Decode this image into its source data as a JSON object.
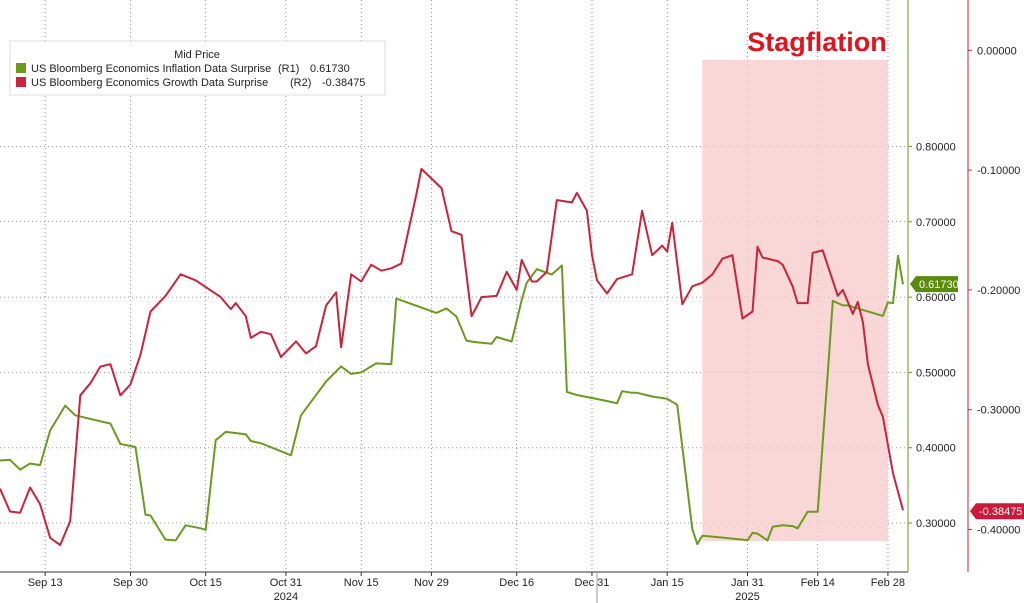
{
  "chart_data": {
    "type": "line",
    "annotation": "Stagflation",
    "shaded_region": {
      "x_start": "2025-01-22",
      "x_end": "2025-02-28"
    },
    "legend": {
      "title": "Mid Price",
      "items": [
        {
          "label": "US Bloomberg Economics Inflation Data Surprise",
          "axis": "(R1)",
          "value": "0.61730"
        },
        {
          "label": "US Bloomberg Economics Growth Data Surprise",
          "axis": "(R2)",
          "value": "-0.38475"
        }
      ]
    },
    "x_ticks": [
      {
        "date": "2024-09-13",
        "label": "Sep 13"
      },
      {
        "date": "2024-09-30",
        "label": "Sep 30"
      },
      {
        "date": "2024-10-15",
        "label": "Oct 15"
      },
      {
        "date": "2024-10-31",
        "label": "Oct 31"
      },
      {
        "date": "2024-11-15",
        "label": "Nov 15"
      },
      {
        "date": "2024-11-29",
        "label": "Nov 29"
      },
      {
        "date": "2024-12-16",
        "label": "Dec 16"
      },
      {
        "date": "2024-12-31",
        "label": "Dec 31"
      },
      {
        "date": "2025-01-15",
        "label": "Jan 15"
      },
      {
        "date": "2025-01-31",
        "label": "Jan 31"
      },
      {
        "date": "2025-02-14",
        "label": "Feb 14"
      },
      {
        "date": "2025-02-28",
        "label": "Feb 28"
      }
    ],
    "year_labels": [
      {
        "date": "2024-10-31",
        "label": "2024"
      },
      {
        "date": "2025-01-31",
        "label": "2025"
      }
    ],
    "xlim": [
      "2024-09-04",
      "2025-03-04"
    ],
    "y1": {
      "ylim": [
        0.235,
        0.9945
      ],
      "ticks": [
        "0.30000",
        "0.40000",
        "0.50000",
        "0.60000",
        "0.70000",
        "0.80000"
      ]
    },
    "y2": {
      "ylim": [
        -0.4355,
        0.042
      ],
      "ticks": [
        "-0.40000",
        "-0.30000",
        "-0.20000",
        "-0.10000",
        "0.00000"
      ]
    },
    "badges": [
      {
        "series": "inflation",
        "label": "0.61730",
        "value": 0.6173,
        "color": "#5a8a0e"
      },
      {
        "series": "growth",
        "label": "-0.38475",
        "value": -0.38475,
        "color": "#cc1a3a"
      }
    ],
    "series": [
      {
        "name": "US Bloomberg Economics Inflation Data Surprise",
        "axis": "y1",
        "color": "#6b9a1f",
        "points": [
          [
            "2024-09-04",
            0.383
          ],
          [
            "2024-09-06",
            0.384
          ],
          [
            "2024-09-08",
            0.371
          ],
          [
            "2024-09-10",
            0.379
          ],
          [
            "2024-09-12",
            0.377
          ],
          [
            "2024-09-14",
            0.423
          ],
          [
            "2024-09-17",
            0.456
          ],
          [
            "2024-09-19",
            0.443
          ],
          [
            "2024-09-26",
            0.432
          ],
          [
            "2024-09-28",
            0.405
          ],
          [
            "2024-10-01",
            0.401
          ],
          [
            "2024-10-03",
            0.311
          ],
          [
            "2024-10-04",
            0.31
          ],
          [
            "2024-10-07",
            0.278
          ],
          [
            "2024-10-09",
            0.277
          ],
          [
            "2024-10-11",
            0.297
          ],
          [
            "2024-10-14",
            0.293
          ],
          [
            "2024-10-15",
            0.291
          ],
          [
            "2024-10-17",
            0.41
          ],
          [
            "2024-10-19",
            0.421
          ],
          [
            "2024-10-23",
            0.418
          ],
          [
            "2024-10-24",
            0.409
          ],
          [
            "2024-10-26",
            0.406
          ],
          [
            "2024-11-01",
            0.39
          ],
          [
            "2024-11-03",
            0.443
          ],
          [
            "2024-11-08",
            0.488
          ],
          [
            "2024-11-11",
            0.508
          ],
          [
            "2024-11-13",
            0.498
          ],
          [
            "2024-11-15",
            0.5
          ],
          [
            "2024-11-18",
            0.512
          ],
          [
            "2024-11-21",
            0.511
          ],
          [
            "2024-11-22",
            0.598
          ],
          [
            "2024-11-30",
            0.579
          ],
          [
            "2024-12-02",
            0.585
          ],
          [
            "2024-12-04",
            0.574
          ],
          [
            "2024-12-06",
            0.542
          ],
          [
            "2024-12-08",
            0.54
          ],
          [
            "2024-12-11",
            0.538
          ],
          [
            "2024-12-12",
            0.547
          ],
          [
            "2024-12-15",
            0.541
          ],
          [
            "2024-12-17",
            0.596
          ],
          [
            "2024-12-18",
            0.619
          ],
          [
            "2024-12-20",
            0.637
          ],
          [
            "2024-12-23",
            0.63
          ],
          [
            "2024-12-25",
            0.642
          ],
          [
            "2024-12-26",
            0.474
          ],
          [
            "2024-12-28",
            0.47
          ],
          [
            "2025-01-03",
            0.462
          ],
          [
            "2025-01-05",
            0.459
          ],
          [
            "2025-01-06",
            0.475
          ],
          [
            "2025-01-08",
            0.473
          ],
          [
            "2025-01-09",
            0.473
          ],
          [
            "2025-01-12",
            0.468
          ],
          [
            "2025-01-15",
            0.465
          ],
          [
            "2025-01-17",
            0.457
          ],
          [
            "2025-01-20",
            0.292
          ],
          [
            "2025-01-21",
            0.272
          ],
          [
            "2025-01-22",
            0.283
          ],
          [
            "2025-01-24",
            0.282
          ],
          [
            "2025-01-30",
            0.278
          ],
          [
            "2025-01-31",
            0.277
          ],
          [
            "2025-02-01",
            0.287
          ],
          [
            "2025-02-02",
            0.286
          ],
          [
            "2025-02-04",
            0.277
          ],
          [
            "2025-02-05",
            0.295
          ],
          [
            "2025-02-07",
            0.297
          ],
          [
            "2025-02-09",
            0.296
          ],
          [
            "2025-02-10",
            0.293
          ],
          [
            "2025-02-12",
            0.315
          ],
          [
            "2025-02-14",
            0.315
          ],
          [
            "2025-02-16",
            0.498
          ],
          [
            "2025-02-17",
            0.595
          ],
          [
            "2025-02-19",
            0.589
          ],
          [
            "2025-02-20",
            0.589
          ],
          [
            "2025-02-27",
            0.575
          ],
          [
            "2025-02-28",
            0.593
          ],
          [
            "2025-03-01",
            0.592
          ],
          [
            "2025-03-02",
            0.655
          ],
          [
            "2025-03-03",
            0.617
          ]
        ]
      },
      {
        "name": "US Bloomberg Economics Growth Data Surprise",
        "axis": "y2",
        "color": "#c8243a",
        "points": [
          [
            "2024-09-04",
            -0.366
          ],
          [
            "2024-09-06",
            -0.385
          ],
          [
            "2024-09-08",
            -0.386
          ],
          [
            "2024-09-10",
            -0.365
          ],
          [
            "2024-09-12",
            -0.379
          ],
          [
            "2024-09-14",
            -0.407
          ],
          [
            "2024-09-16",
            -0.413
          ],
          [
            "2024-09-18",
            -0.393
          ],
          [
            "2024-09-20",
            -0.288
          ],
          [
            "2024-09-22",
            -0.278
          ],
          [
            "2024-09-24",
            -0.264
          ],
          [
            "2024-09-26",
            -0.262
          ],
          [
            "2024-09-28",
            -0.288
          ],
          [
            "2024-09-30",
            -0.279
          ],
          [
            "2024-10-02",
            -0.254
          ],
          [
            "2024-10-04",
            -0.218
          ],
          [
            "2024-10-07",
            -0.205
          ],
          [
            "2024-10-10",
            -0.187
          ],
          [
            "2024-10-13",
            -0.192
          ],
          [
            "2024-10-18",
            -0.206
          ],
          [
            "2024-10-20",
            -0.216
          ],
          [
            "2024-10-21",
            -0.211
          ],
          [
            "2024-10-23",
            -0.222
          ],
          [
            "2024-10-24",
            -0.24
          ],
          [
            "2024-10-26",
            -0.235
          ],
          [
            "2024-10-28",
            -0.237
          ],
          [
            "2024-10-30",
            -0.256
          ],
          [
            "2024-11-02",
            -0.243
          ],
          [
            "2024-11-04",
            -0.253
          ],
          [
            "2024-11-06",
            -0.247
          ],
          [
            "2024-11-08",
            -0.213
          ],
          [
            "2024-11-10",
            -0.202
          ],
          [
            "2024-11-11",
            -0.248
          ],
          [
            "2024-11-13",
            -0.187
          ],
          [
            "2024-11-15",
            -0.193
          ],
          [
            "2024-11-17",
            -0.179
          ],
          [
            "2024-11-19",
            -0.184
          ],
          [
            "2024-11-21",
            -0.182
          ],
          [
            "2024-11-23",
            -0.178
          ],
          [
            "2024-11-26",
            -0.12
          ],
          [
            "2024-11-27",
            -0.099
          ],
          [
            "2024-11-29",
            -0.107
          ],
          [
            "2024-12-01",
            -0.115
          ],
          [
            "2024-12-03",
            -0.151
          ],
          [
            "2024-12-05",
            -0.154
          ],
          [
            "2024-12-07",
            -0.222
          ],
          [
            "2024-12-09",
            -0.206
          ],
          [
            "2024-12-12",
            -0.205
          ],
          [
            "2024-12-14",
            -0.185
          ],
          [
            "2024-12-16",
            -0.2
          ],
          [
            "2024-12-17",
            -0.175
          ],
          [
            "2024-12-19",
            -0.193
          ],
          [
            "2024-12-20",
            -0.193
          ],
          [
            "2024-12-22",
            -0.185
          ],
          [
            "2024-12-24",
            -0.125
          ],
          [
            "2024-12-27",
            -0.127
          ],
          [
            "2024-12-28",
            -0.119
          ],
          [
            "2024-12-30",
            -0.134
          ],
          [
            "2024-12-31",
            -0.171
          ],
          [
            "2025-01-01",
            -0.192
          ],
          [
            "2025-01-03",
            -0.203
          ],
          [
            "2025-01-05",
            -0.191
          ],
          [
            "2025-01-08",
            -0.187
          ],
          [
            "2025-01-10",
            -0.134
          ],
          [
            "2025-01-12",
            -0.171
          ],
          [
            "2025-01-14",
            -0.163
          ],
          [
            "2025-01-15",
            -0.168
          ],
          [
            "2025-01-16",
            -0.144
          ],
          [
            "2025-01-18",
            -0.212
          ],
          [
            "2025-01-20",
            -0.197
          ],
          [
            "2025-01-22",
            -0.194
          ],
          [
            "2025-01-24",
            -0.187
          ],
          [
            "2025-01-26",
            -0.174
          ],
          [
            "2025-01-28",
            -0.171
          ],
          [
            "2025-01-30",
            -0.224
          ],
          [
            "2025-02-01",
            -0.218
          ],
          [
            "2025-02-02",
            -0.164
          ],
          [
            "2025-02-03",
            -0.173
          ],
          [
            "2025-02-06",
            -0.176
          ],
          [
            "2025-02-07",
            -0.179
          ],
          [
            "2025-02-09",
            -0.197
          ],
          [
            "2025-02-10",
            -0.211
          ],
          [
            "2025-02-12",
            -0.211
          ],
          [
            "2025-02-13",
            -0.169
          ],
          [
            "2025-02-15",
            -0.167
          ],
          [
            "2025-02-18",
            -0.205
          ],
          [
            "2025-02-19",
            -0.2
          ],
          [
            "2025-02-21",
            -0.22
          ],
          [
            "2025-02-22",
            -0.21
          ],
          [
            "2025-02-23",
            -0.227
          ],
          [
            "2025-02-24",
            -0.262
          ],
          [
            "2025-02-26",
            -0.296
          ],
          [
            "2025-02-27",
            -0.306
          ],
          [
            "2025-03-01",
            -0.353
          ],
          [
            "2025-03-03",
            -0.384
          ]
        ]
      }
    ]
  }
}
